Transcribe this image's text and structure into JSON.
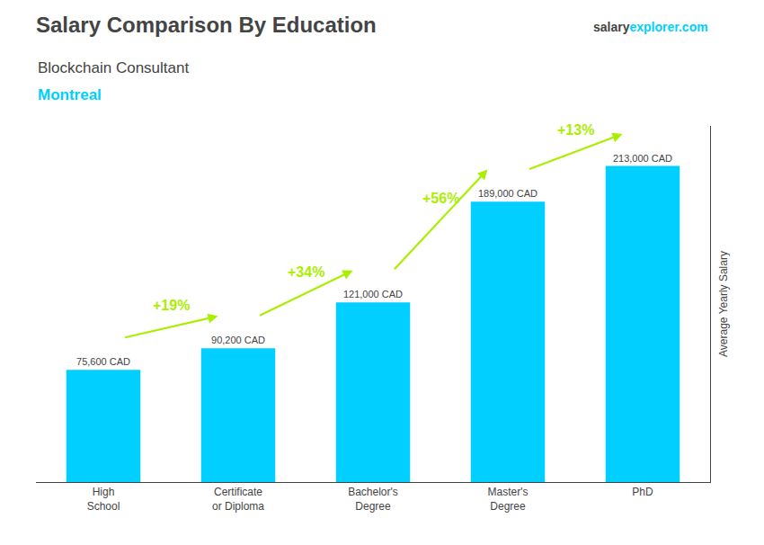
{
  "chart_data": {
    "type": "bar",
    "title": "Salary Comparison By Education",
    "subtitle": [
      {
        "text": "Blockchain Consultant"
      },
      {
        "text": "Montreal",
        "color": "#00CFFF"
      }
    ],
    "annotations": [
      {
        "text": "+19%",
        "color": "#aaee00",
        "arrow": true
      },
      {
        "text": "+34%",
        "color": "#aaee00",
        "arrow": true
      },
      {
        "text": "+56%",
        "color": "#aaee00",
        "arrow": true
      },
      {
        "text": "+13%",
        "color": "#aaee00",
        "arrow": true
      },
      {
        "text": "salary"
      },
      {
        "text": "explorer.com",
        "color": "#00CFFF"
      }
    ],
    "ylabel": "Average Yearly Salary",
    "categories": [
      "High\nSchool",
      "Certificate\nor Diploma",
      "Bachelor's\nDegree",
      "Master's\nDegree",
      "PhD"
    ],
    "values": [
      75600,
      90200,
      121000,
      189000,
      213000
    ],
    "value_labels": [
      "75,600 CAD",
      "90,200 CAD",
      "121,000 CAD",
      "189,000 CAD",
      "213,000 CAD"
    ],
    "data_labels": true,
    "color": "#00CFFF",
    "ylim": [
      0,
      240000
    ],
    "grid": false,
    "tick_labels": "x"
  }
}
